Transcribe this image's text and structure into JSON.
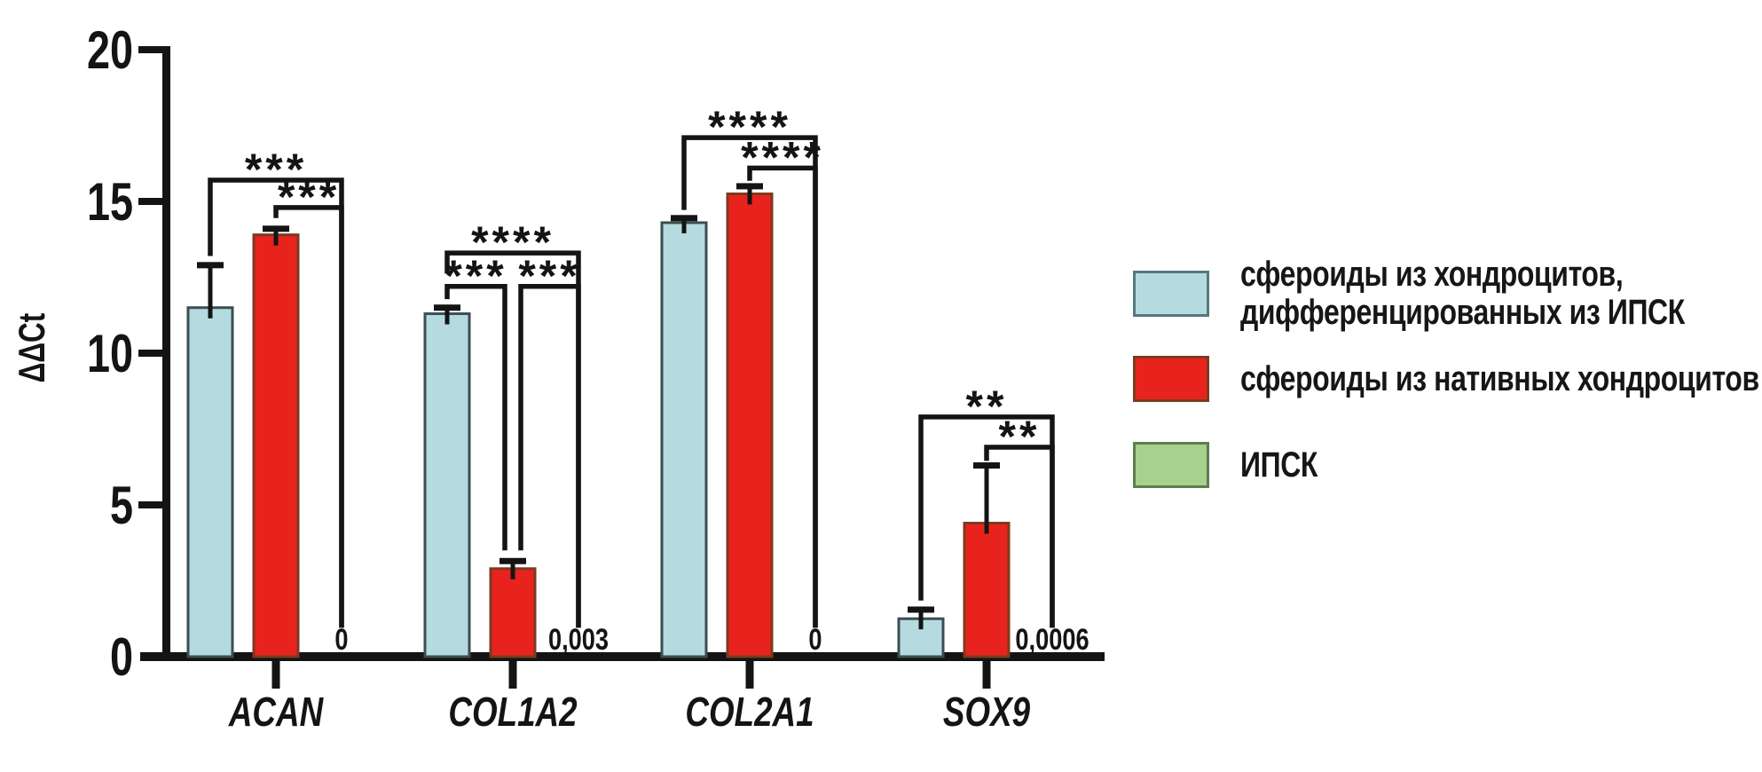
{
  "legend": {
    "items": [
      {
        "lines": [
          "сфероиды из хондроцитов,",
          "дифференцированных из ИПСК"
        ],
        "color": "#b5dbe0",
        "border": "#557880"
      },
      {
        "lines": [
          "сфероиды из нативных хондроцитов"
        ],
        "color": "#e8231e",
        "border": "#7d3a20"
      },
      {
        "lines": [
          "ИПСК"
        ],
        "color": "#a8d18e",
        "border": "#5d7d52"
      }
    ]
  },
  "chart_data": {
    "type": "bar",
    "title": "",
    "ylabel": "ΔΔCt",
    "ylim": [
      0,
      20
    ],
    "yticks": [
      0,
      5,
      10,
      15,
      20
    ],
    "grid": false,
    "legend_position": "right",
    "categories": [
      "ACAN",
      "COL1A2",
      "COL2A1",
      "SOX9"
    ],
    "series": [
      {
        "name": "сфероиды из хондроцитов, дифференцированных из ИПСК",
        "color": "#b5dbe0",
        "border_color": "#3c4e52",
        "values": [
          11.5,
          11.3,
          14.3,
          1.25
        ],
        "errors_plus": [
          1.4,
          0.2,
          0.15,
          0.3
        ]
      },
      {
        "name": "сфероиды из нативных хондроцитов",
        "color": "#e8231e",
        "border_color": "#7d3a20",
        "values": [
          13.9,
          2.9,
          15.25,
          4.4
        ],
        "errors_plus": [
          0.2,
          0.25,
          0.25,
          1.9
        ]
      },
      {
        "name": "ИПСК",
        "color": "#a8d18e",
        "border_color": "#5d7d52",
        "values": [
          0,
          0.003,
          0,
          0.0006
        ],
        "errors_plus": [
          0,
          0,
          0,
          0
        ],
        "value_labels": [
          "0",
          "0,003",
          "0",
          "0,0006"
        ]
      }
    ],
    "significance_brackets": [
      {
        "category": "ACAN",
        "pairs": [
          {
            "s1": 0,
            "s2": 2,
            "dx1": 0,
            "dx2": 0,
            "level": 15.7,
            "end1": 13.2,
            "end2": 0.95,
            "stars": "***"
          },
          {
            "s1": 1,
            "s2": 2,
            "dx1": 0,
            "dx2": 0,
            "level": 14.8,
            "end1": 14.45,
            "end2": 0.95,
            "stars": "***"
          }
        ]
      },
      {
        "category": "COL1A2",
        "pairs": [
          {
            "s1": 0,
            "s2": 2,
            "dx1": 0,
            "dx2": 0,
            "level": 13.3,
            "end1": 12.62,
            "end2": 0.95,
            "stars": "****"
          },
          {
            "s1": 0,
            "s2": 1,
            "dx1": 0,
            "dx2": -9,
            "level": 12.2,
            "end1": 11.78,
            "end2": 3.5,
            "stars": "***"
          },
          {
            "s1": 1,
            "s2": 2,
            "dx1": 9,
            "dx2": 0,
            "level": 12.2,
            "end1": 3.5,
            "end2": 0.95,
            "stars": "***"
          }
        ]
      },
      {
        "category": "COL2A1",
        "pairs": [
          {
            "s1": 0,
            "s2": 2,
            "dx1": 0,
            "dx2": 0,
            "level": 17.1,
            "end1": 14.72,
            "end2": 0.95,
            "stars": "****"
          },
          {
            "s1": 1,
            "s2": 2,
            "dx1": 0,
            "dx2": 0,
            "level": 16.1,
            "end1": 15.68,
            "end2": 0.95,
            "stars": "****"
          }
        ]
      },
      {
        "category": "SOX9",
        "pairs": [
          {
            "s1": 0,
            "s2": 2,
            "dx1": 0,
            "dx2": 0,
            "level": 7.9,
            "end1": 1.85,
            "end2": 0.95,
            "stars": "**"
          },
          {
            "s1": 1,
            "s2": 2,
            "dx1": 0,
            "dx2": 0,
            "level": 6.9,
            "end1": 6.45,
            "end2": 0.95,
            "stars": "**"
          }
        ]
      }
    ]
  }
}
